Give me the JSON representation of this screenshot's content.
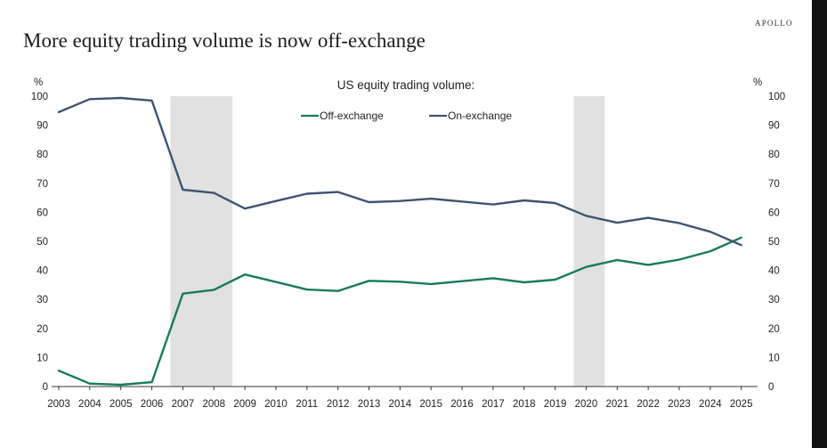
{
  "page": {
    "title": "More equity trading volume is now off-exchange",
    "brand": "APOLLO"
  },
  "chart_data": {
    "type": "line",
    "title": "US equity trading volume:",
    "ylabel_left": "%",
    "ylabel_right": "%",
    "ylim": [
      0,
      100
    ],
    "yticks": [
      0,
      10,
      20,
      30,
      40,
      50,
      60,
      70,
      80,
      90,
      100
    ],
    "grid": false,
    "legend_position": "top-center",
    "x": [
      "2003",
      "2004",
      "2005",
      "2006",
      "2007",
      "2008",
      "2009",
      "2010",
      "2011",
      "2012",
      "2013",
      "2014",
      "2015",
      "2016",
      "2017",
      "2018",
      "2019",
      "2020",
      "2021",
      "2022",
      "2023",
      "2024",
      "2025"
    ],
    "shaded_periods": [
      {
        "from": 2006.6,
        "to": 2008.6
      },
      {
        "from": 2019.6,
        "to": 2020.6
      }
    ],
    "series": [
      {
        "name": "Off-exchange",
        "color": "#1a7a5e",
        "values": [
          5.5,
          1.0,
          0.6,
          1.5,
          32.0,
          33.3,
          38.6,
          36.0,
          33.4,
          32.9,
          36.4,
          36.1,
          35.3,
          36.3,
          37.3,
          35.9,
          36.8,
          41.2,
          43.6,
          41.9,
          43.7,
          46.6,
          51.3
        ]
      },
      {
        "name": "On-exchange",
        "color": "#3e5471",
        "values": [
          94.5,
          99.0,
          99.4,
          98.5,
          67.8,
          66.7,
          61.3,
          63.9,
          66.4,
          67.0,
          63.5,
          63.9,
          64.7,
          63.7,
          62.7,
          64.1,
          63.2,
          58.8,
          56.4,
          58.1,
          56.3,
          53.3,
          48.7
        ]
      }
    ]
  }
}
